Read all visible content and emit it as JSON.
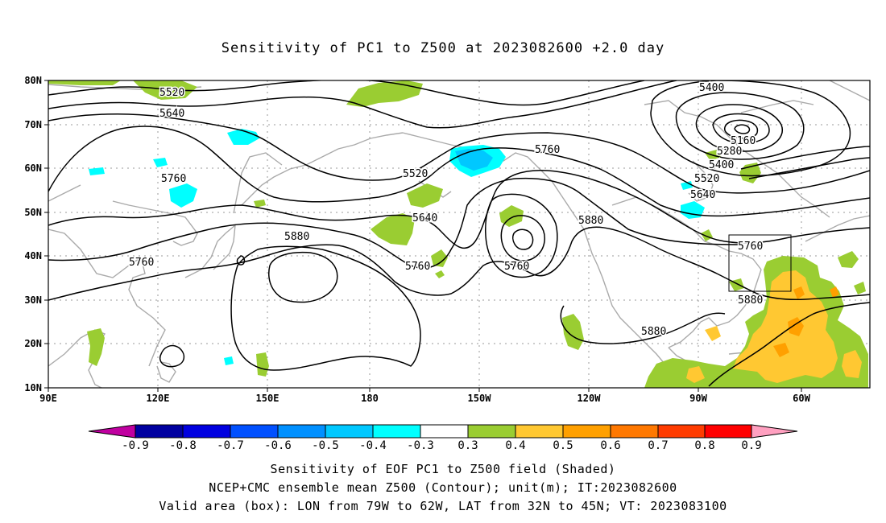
{
  "title": "Sensitivity of PC1 to Z500 at 2023082600 +2.0 day",
  "map": {
    "lon_ticks": [
      "90E",
      "120E",
      "150E",
      "180",
      "150W",
      "120W",
      "90W",
      "60W"
    ],
    "lat_ticks": [
      "80N",
      "70N",
      "60N",
      "50N",
      "40N",
      "30N",
      "20N",
      "10N"
    ],
    "contour_labels": [
      "5400",
      "5520",
      "5640",
      "5760",
      "5880",
      "5160",
      "5280"
    ],
    "box": {
      "lon_west": "79W",
      "lon_east": "62W",
      "lat_south": "32N",
      "lat_north": "45N"
    }
  },
  "colorbar": {
    "labels": [
      "-0.9",
      "-0.8",
      "-0.7",
      "-0.6",
      "-0.5",
      "-0.4",
      "-0.3",
      "0.3",
      "0.4",
      "0.5",
      "0.6",
      "0.7",
      "0.8",
      "0.9"
    ],
    "colors": [
      "#c000a0",
      "#0000a0",
      "#0000e0",
      "#0050ff",
      "#0090ff",
      "#00c8ff",
      "#00ffff",
      "#ffffff",
      "#9acd32",
      "#ffc832",
      "#ffa000",
      "#ff7800",
      "#ff3c00",
      "#ff0000",
      "#ffa0c0"
    ]
  },
  "captions": {
    "line1": "Sensitivity of EOF PC1 to Z500 field (Shaded)",
    "line2": "NCEP+CMC ensemble mean Z500 (Contour); unit(m); IT:2023082600",
    "line3": "Valid area (box): LON from 79W to 62W, LAT from 32N to 45N; VT: 2023083100"
  }
}
